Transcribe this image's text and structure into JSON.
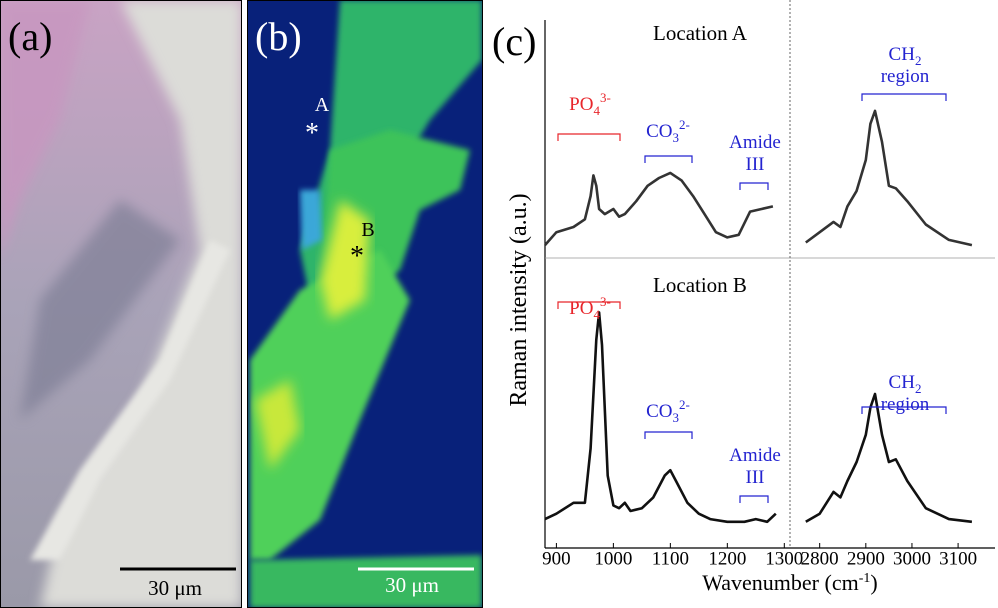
{
  "panels": {
    "a": {
      "label": "(a)",
      "scale_bar": "30 μm"
    },
    "b": {
      "label": "(b)",
      "scale_bar": "30 μm",
      "points": [
        "A",
        "B"
      ],
      "marker": "*"
    },
    "c": {
      "label": "(c)",
      "y_label": "Raman intensity (a.u.)",
      "x_label": {
        "text": "Wavenumber (cm",
        "sup": "-1",
        "end": ")"
      }
    }
  },
  "chart_data": [
    {
      "type": "line",
      "title": "Location A",
      "color": "#333333",
      "xlim": [
        880,
        1310
      ],
      "ylim": [
        0,
        100
      ],
      "x": [
        880,
        900,
        930,
        950,
        960,
        965,
        970,
        975,
        985,
        1000,
        1010,
        1020,
        1040,
        1060,
        1080,
        1100,
        1120,
        1140,
        1160,
        1180,
        1200,
        1220,
        1240,
        1260,
        1280
      ],
      "values": [
        5,
        10,
        12,
        15,
        24,
        32,
        28,
        19,
        17,
        19,
        16,
        17,
        22,
        28,
        31,
        33,
        30,
        24,
        17,
        10,
        8,
        9,
        18,
        19,
        20
      ],
      "annotations": [
        {
          "text": "PO",
          "sub": "4",
          "sup": "3-",
          "color": "#e8262b"
        },
        {
          "text": "CO",
          "sub": "3",
          "sup": "2-",
          "color": "#2323d0"
        },
        {
          "text": "Amide",
          "line2": "III",
          "color": "#2323d0"
        }
      ]
    },
    {
      "type": "line",
      "color": "#333333",
      "xlim": [
        2740,
        3180
      ],
      "ylim": [
        0,
        100
      ],
      "x": [
        2770,
        2800,
        2830,
        2845,
        2860,
        2880,
        2900,
        2910,
        2920,
        2935,
        2950,
        2965,
        2990,
        3030,
        3080,
        3130
      ],
      "values": [
        6,
        10,
        14,
        12,
        20,
        26,
        38,
        52,
        57,
        45,
        28,
        27,
        22,
        13,
        7,
        5
      ],
      "annotations": [
        {
          "text": "CH",
          "sub": "2",
          "line2": "region",
          "color": "#2323d0"
        }
      ]
    },
    {
      "type": "line",
      "title": "Location B",
      "color": "#111111",
      "xlim": [
        880,
        1310
      ],
      "ylim": [
        0,
        100
      ],
      "xticks": [
        900,
        1000,
        1100,
        1200,
        1300
      ],
      "x": [
        880,
        900,
        930,
        950,
        960,
        970,
        975,
        980,
        990,
        1000,
        1010,
        1020,
        1030,
        1050,
        1070,
        1090,
        1100,
        1110,
        1130,
        1150,
        1170,
        1200,
        1230,
        1250,
        1270,
        1285
      ],
      "values": [
        4,
        6,
        10,
        10,
        30,
        70,
        80,
        68,
        20,
        9,
        8,
        10,
        7,
        8,
        12,
        20,
        22,
        18,
        10,
        6,
        4,
        3,
        3,
        4,
        3,
        6
      ],
      "annotations": [
        {
          "text": "PO",
          "sub": "4",
          "sup": "3-",
          "color": "#e8262b"
        },
        {
          "text": "CO",
          "sub": "3",
          "sup": "2-",
          "color": "#2323d0"
        },
        {
          "text": "Amide",
          "line2": "III",
          "color": "#2323d0"
        }
      ]
    },
    {
      "type": "line",
      "color": "#111111",
      "xlim": [
        2740,
        3180
      ],
      "ylim": [
        0,
        100
      ],
      "xticks": [
        2800,
        2900,
        3000,
        3100
      ],
      "x": [
        2770,
        2800,
        2830,
        2845,
        2860,
        2880,
        2900,
        2910,
        2920,
        2935,
        2950,
        2965,
        2990,
        3030,
        3080,
        3130
      ],
      "values": [
        3,
        6,
        14,
        12,
        18,
        25,
        35,
        45,
        50,
        35,
        25,
        26,
        18,
        8,
        4,
        3
      ],
      "annotations": [
        {
          "text": "CH",
          "sub": "2",
          "line2": "region",
          "color": "#2323d0"
        }
      ]
    }
  ]
}
